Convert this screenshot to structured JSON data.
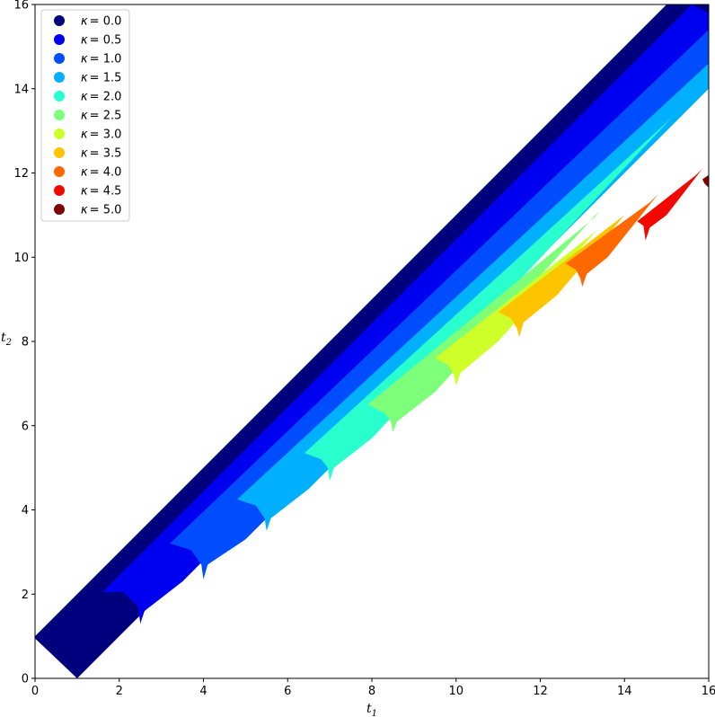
{
  "chart_data": {
    "type": "area",
    "title": "",
    "xlabel": "t",
    "xlabel_sub": "1",
    "ylabel": "t",
    "ylabel_sub": "2",
    "xlim": [
      0,
      16
    ],
    "ylim": [
      0,
      16
    ],
    "xticks": [
      "0",
      "2",
      "4",
      "6",
      "8",
      "10",
      "12",
      "14",
      "16"
    ],
    "yticks": [
      "0",
      "2",
      "4",
      "6",
      "8",
      "10",
      "12",
      "14",
      "16"
    ],
    "legend_position": "top-left",
    "legend_symbol": "κ",
    "grid": false,
    "series": [
      {
        "name": "κ = 0.0",
        "label": "= 0.0",
        "color": "#00007f"
      },
      {
        "name": "κ = 0.5",
        "label": "= 0.5",
        "color": "#0000f1"
      },
      {
        "name": "κ = 1.0",
        "label": "= 1.0",
        "color": "#004cff"
      },
      {
        "name": "κ = 1.5",
        "label": "= 1.5",
        "color": "#00b0ff"
      },
      {
        "name": "κ = 2.0",
        "label": "= 2.0",
        "color": "#29ffce"
      },
      {
        "name": "κ = 2.5",
        "label": "= 2.5",
        "color": "#7dff7a"
      },
      {
        "name": "κ = 3.0",
        "label": "= 3.0",
        "color": "#ceff29"
      },
      {
        "name": "κ = 3.5",
        "label": "= 3.5",
        "color": "#ffc400"
      },
      {
        "name": "κ = 4.0",
        "label": "= 4.0",
        "color": "#ff6800"
      },
      {
        "name": "κ = 4.5",
        "label": "= 4.5",
        "color": "#f10800"
      },
      {
        "name": "κ = 5.0",
        "label": "= 5.0",
        "color": "#7f0000"
      }
    ],
    "regions": [
      {
        "series": 0,
        "polygon": [
          [
            1,
            0
          ],
          [
            16,
            15
          ],
          [
            16,
            16
          ],
          [
            15,
            16
          ],
          [
            0,
            1
          ],
          [
            0,
            0.95
          ]
        ]
      },
      {
        "series": 1,
        "polygon": [
          [
            2.5,
            1.3
          ],
          [
            2.6,
            1.6
          ],
          [
            3.5,
            2.3
          ],
          [
            16,
            14.8
          ],
          [
            16,
            15.8
          ],
          [
            15.6,
            16
          ],
          [
            1.6,
            2.05
          ],
          [
            2.1,
            2.05
          ],
          [
            2.45,
            1.7
          ]
        ]
      },
      {
        "series": 2,
        "polygon": [
          [
            4.0,
            2.35
          ],
          [
            4.1,
            2.7
          ],
          [
            5.0,
            3.3
          ],
          [
            16,
            14.3
          ],
          [
            16,
            15.4
          ],
          [
            3.2,
            3.2
          ],
          [
            3.7,
            3.05
          ],
          [
            3.95,
            2.7
          ]
        ]
      },
      {
        "series": 3,
        "polygon": [
          [
            5.5,
            3.5
          ],
          [
            5.6,
            3.8
          ],
          [
            6.5,
            4.5
          ],
          [
            16,
            14.0
          ],
          [
            16,
            14.6
          ],
          [
            4.8,
            4.25
          ],
          [
            5.25,
            4.1
          ],
          [
            5.45,
            3.8
          ]
        ]
      },
      {
        "series": 4,
        "polygon": [
          [
            7.0,
            4.7
          ],
          [
            7.1,
            5.0
          ],
          [
            8.0,
            5.7
          ],
          [
            15.2,
            13.4
          ],
          [
            15.0,
            13.2
          ],
          [
            6.4,
            5.35
          ],
          [
            6.8,
            5.2
          ],
          [
            6.95,
            5.0
          ]
        ]
      },
      {
        "series": 5,
        "polygon": [
          [
            8.5,
            5.85
          ],
          [
            8.6,
            6.1
          ],
          [
            9.5,
            6.8
          ],
          [
            13.4,
            11.1
          ],
          [
            13.3,
            10.95
          ],
          [
            7.9,
            6.5
          ],
          [
            8.3,
            6.3
          ],
          [
            8.45,
            6.1
          ]
        ]
      },
      {
        "series": 6,
        "polygon": [
          [
            10.0,
            6.95
          ],
          [
            10.1,
            7.25
          ],
          [
            11.0,
            8.0
          ],
          [
            13.4,
            10.7
          ],
          [
            13.3,
            10.6
          ],
          [
            9.5,
            7.6
          ],
          [
            9.8,
            7.45
          ],
          [
            9.95,
            7.2
          ]
        ]
      },
      {
        "series": 7,
        "polygon": [
          [
            11.5,
            8.1
          ],
          [
            11.6,
            8.45
          ],
          [
            12.4,
            9.1
          ],
          [
            14.0,
            11.0
          ],
          [
            13.8,
            10.85
          ],
          [
            11.0,
            8.7
          ],
          [
            11.3,
            8.55
          ],
          [
            11.45,
            8.3
          ]
        ]
      },
      {
        "series": 8,
        "polygon": [
          [
            13.0,
            9.3
          ],
          [
            13.1,
            9.6
          ],
          [
            13.6,
            10.0
          ],
          [
            14.8,
            11.5
          ],
          [
            14.6,
            11.3
          ],
          [
            12.6,
            9.85
          ],
          [
            12.85,
            9.7
          ],
          [
            12.95,
            9.5
          ]
        ]
      },
      {
        "series": 9,
        "polygon": [
          [
            14.5,
            10.4
          ],
          [
            14.6,
            10.7
          ],
          [
            15.0,
            11.0
          ],
          [
            15.85,
            12.1
          ],
          [
            15.7,
            11.95
          ],
          [
            14.3,
            10.85
          ],
          [
            14.45,
            10.75
          ]
        ]
      },
      {
        "series": 10,
        "polygon": [
          [
            15.9,
            11.75
          ],
          [
            16,
            11.65
          ],
          [
            16,
            11.95
          ],
          [
            15.85,
            11.85
          ]
        ]
      }
    ]
  }
}
